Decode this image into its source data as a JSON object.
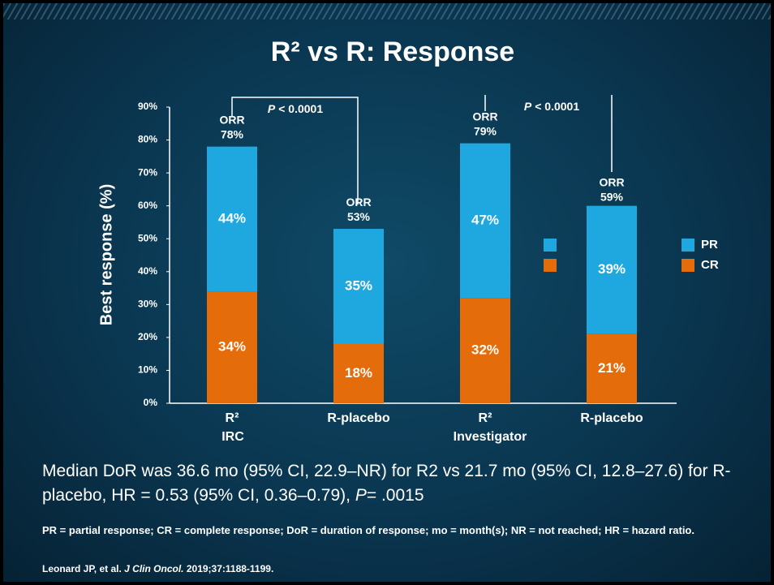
{
  "chart_data": {
    "type": "stacked_bar",
    "title": "R² vs R: Response",
    "ylabel": "Best response (%)",
    "categories": [
      "R²",
      "R-placebo",
      "R²",
      "R-placebo"
    ],
    "group_labels": [
      "IRC",
      "Investigator"
    ],
    "series": [
      {
        "name": "CR",
        "color": "#e46c0a",
        "values": [
          34,
          18,
          32,
          21
        ],
        "value_labels": [
          "34%",
          "18%",
          "32%",
          "21%"
        ]
      },
      {
        "name": "PR",
        "color": "#1fa8e0",
        "values": [
          44,
          35,
          47,
          39
        ],
        "value_labels": [
          "44%",
          "35%",
          "47%",
          "39%"
        ]
      }
    ],
    "orr": {
      "name": "ORR",
      "values": [
        78,
        53,
        79,
        59
      ],
      "value_labels": [
        "78%",
        "53%",
        "79%",
        "59%"
      ]
    },
    "annotations": [
      {
        "italic": "P",
        "text": "< 0.0001"
      },
      {
        "italic": "P",
        "text": "< 0.0001"
      }
    ],
    "ylim": [
      0,
      90
    ],
    "yticks": [
      {
        "value": 0,
        "label": "0%"
      },
      {
        "value": 10,
        "label": "10%"
      },
      {
        "value": 20,
        "label": "20%"
      },
      {
        "value": 30,
        "label": "30%"
      },
      {
        "value": 40,
        "label": "40%"
      },
      {
        "value": 50,
        "label": "50%"
      },
      {
        "value": 60,
        "label": "60%"
      },
      {
        "value": 70,
        "label": "70%"
      },
      {
        "value": 80,
        "label": "80%"
      },
      {
        "value": 90,
        "label": "90%"
      }
    ],
    "grid": false,
    "legend": "right"
  },
  "summary": {
    "text": "Median DoR was 36.6 mo (95% CI, 22.9–NR) for R2 vs 21.7 mo (95% CI, 12.8–27.6) for R-placebo, HR = 0.53 (95% CI, 0.36–0.79),",
    "italic": "P",
    "end": "= .0015"
  },
  "footnote": "PR = partial response; CR = complete response; DoR = duration of response; mo = month(s); NR = not reached; HR = hazard ratio.",
  "citation": {
    "authors": "Leonard JP, et al.",
    "journal": "J Clin Oncol.",
    "details": "2019;37:1188-1199."
  }
}
